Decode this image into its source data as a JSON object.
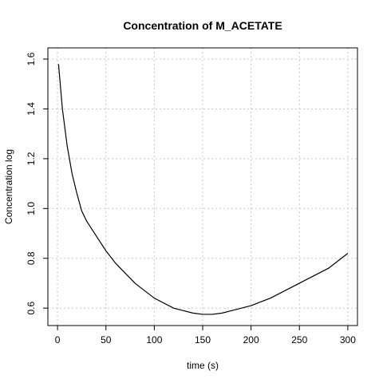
{
  "chart_data": {
    "type": "line",
    "title": "Concentration of M_ACETATE",
    "xlabel": "time (s)",
    "ylabel": "Concentration log",
    "xlim": [
      -10,
      310
    ],
    "ylim": [
      0.53,
      1.645
    ],
    "grid": true,
    "x_ticks": [
      0,
      50,
      100,
      150,
      200,
      250,
      300
    ],
    "y_ticks": [
      0.6,
      0.8,
      1.0,
      1.2,
      1.4,
      1.6
    ],
    "x_tick_labels": [
      "0",
      "50",
      "100",
      "150",
      "200",
      "250",
      "300"
    ],
    "y_tick_labels": [
      "0.6",
      "0.8",
      "1.0",
      "1.2",
      "1.4",
      "1.6"
    ],
    "series": [
      {
        "x": [
          1,
          5,
          10,
          15,
          20,
          25,
          30,
          40,
          50,
          60,
          70,
          80,
          90,
          100,
          110,
          120,
          130,
          140,
          150,
          160,
          170,
          180,
          190,
          200,
          210,
          220,
          230,
          240,
          250,
          260,
          270,
          280,
          290,
          300
        ],
        "y": [
          1.58,
          1.4,
          1.25,
          1.14,
          1.06,
          0.99,
          0.95,
          0.89,
          0.83,
          0.78,
          0.74,
          0.7,
          0.67,
          0.64,
          0.62,
          0.6,
          0.59,
          0.58,
          0.575,
          0.575,
          0.58,
          0.59,
          0.6,
          0.61,
          0.625,
          0.64,
          0.66,
          0.68,
          0.7,
          0.72,
          0.74,
          0.76,
          0.79,
          0.82
        ]
      }
    ]
  }
}
